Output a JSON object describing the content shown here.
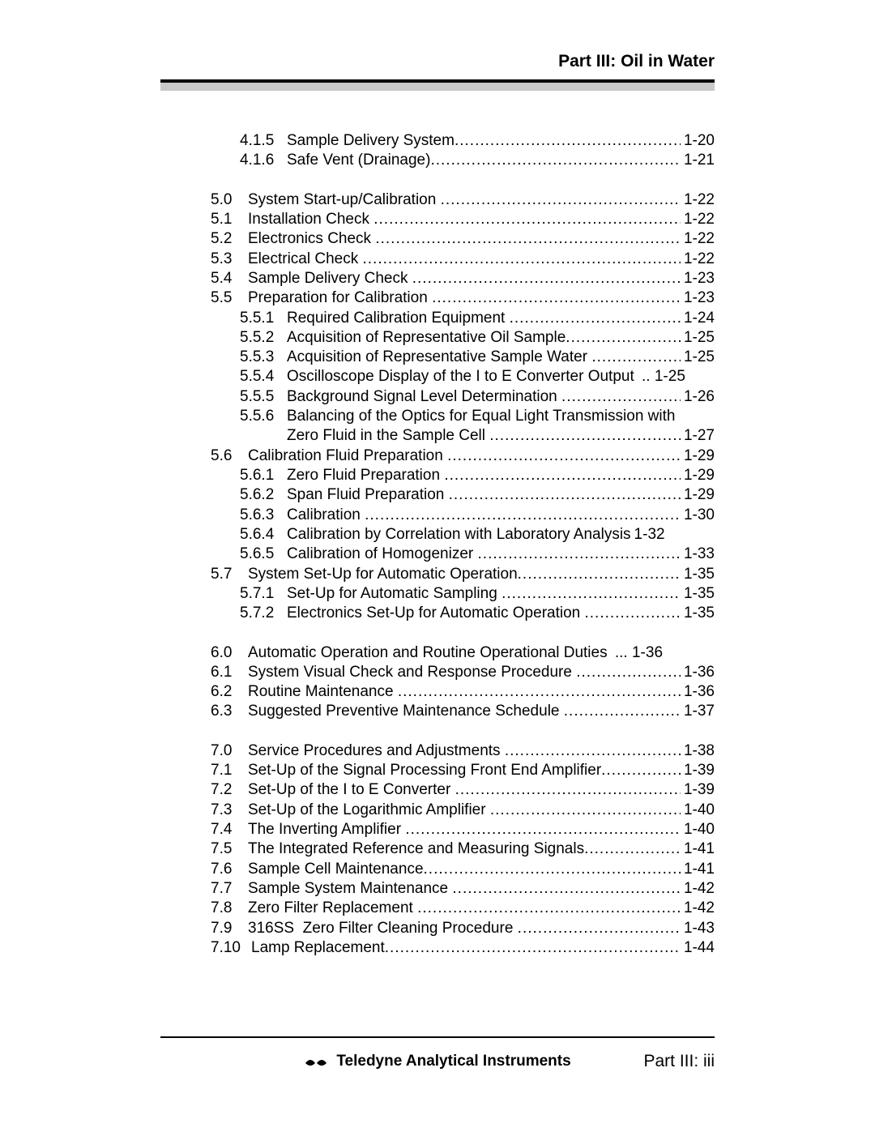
{
  "header": {
    "title": "Part III: Oil in Water"
  },
  "groups": [
    {
      "entries": [
        {
          "level": 2,
          "num": "4.1.5",
          "title": "Sample Delivery System",
          "page": "1-20"
        },
        {
          "level": 2,
          "num": "4.1.6",
          "title": "Safe Vent (Drainage)",
          "page": "1-21"
        }
      ]
    },
    {
      "entries": [
        {
          "level": 1,
          "num": "5.0",
          "title": "System Start-up/Calibration ",
          "page": "1-22"
        },
        {
          "level": 1,
          "num": "5.1",
          "title": "Installation Check ",
          "page": "1-22"
        },
        {
          "level": 1,
          "num": "5.2",
          "title": "Electronics Check ",
          "page": "1-22"
        },
        {
          "level": 1,
          "num": "5.3",
          "title": "Electrical Check ",
          "page": "1-22"
        },
        {
          "level": 1,
          "num": "5.4",
          "title": "Sample Delivery Check ",
          "page": "1-23"
        },
        {
          "level": 1,
          "num": "5.5",
          "title": "Preparation for Calibration ",
          "page": "1-23"
        },
        {
          "level": 2,
          "num": "5.5.1",
          "title": "Required Calibration Equipment ",
          "page": "1-24"
        },
        {
          "level": 2,
          "num": "5.5.2",
          "title": "Acquisition of Representative Oil Sample",
          "page": "1-25"
        },
        {
          "level": 2,
          "num": "5.5.3",
          "title": "Acquisition of Representative Sample Water ",
          "page": "1-25"
        },
        {
          "level": 2,
          "num": "5.5.4",
          "title": "Oscilloscope Display of the I to E Converter Output ",
          "nodots": true,
          "page": ".. 1-25"
        },
        {
          "level": 2,
          "num": "5.5.5",
          "title": "Background Signal Level Determination ",
          "page": "1-26"
        },
        {
          "level": 2,
          "num": "5.5.6",
          "title": "Balancing of the Optics for Equal Light Transmission with",
          "nodots": true,
          "page": ""
        },
        {
          "level": 3,
          "title": "Zero Fluid in the Sample Cell ",
          "page": "1-27"
        },
        {
          "level": 1,
          "num": "5.6",
          "title": "Calibration Fluid Preparation ",
          "page": "1-29"
        },
        {
          "level": 2,
          "num": "5.6.1",
          "title": "Zero Fluid Preparation ",
          "page": "1-29"
        },
        {
          "level": 2,
          "num": "5.6.2",
          "title": "Span Fluid Preparation ",
          "page": "1-29"
        },
        {
          "level": 2,
          "num": "5.6.3",
          "title": "Calibration ",
          "page": "1-30"
        },
        {
          "level": 2,
          "num": "5.6.4",
          "title": "Calibration by Correlation with Laboratory Analysis",
          "nodots": true,
          "page": "1-32"
        },
        {
          "level": 2,
          "num": "5.6.5",
          "title": "Calibration of Homogenizer ",
          "page": "1-33"
        },
        {
          "level": 1,
          "num": "5.7",
          "title": "System Set-Up for Automatic Operation",
          "page": "1-35"
        },
        {
          "level": 2,
          "num": "5.7.1",
          "title": "Set-Up for Automatic Sampling ",
          "page": "1-35"
        },
        {
          "level": 2,
          "num": "5.7.2",
          "title": "Electronics Set-Up for Automatic Operation ",
          "page": "1-35"
        }
      ]
    },
    {
      "entries": [
        {
          "level": 1,
          "num": "6.0",
          "title": "Automatic Operation and Routine Operational Duties ",
          "nodots": true,
          "page": "... 1-36"
        },
        {
          "level": 1,
          "num": "6.1",
          "title": "System Visual Check and Response Procedure ",
          "page": "1-36"
        },
        {
          "level": 1,
          "num": "6.2",
          "title": "Routine Maintenance ",
          "page": "1-36"
        },
        {
          "level": 1,
          "num": "6.3",
          "title": "Suggested Preventive Maintenance Schedule ",
          "page": "1-37"
        }
      ]
    },
    {
      "entries": [
        {
          "level": 1,
          "num": "7.0",
          "title": "Service Procedures and Adjustments ",
          "page": "1-38"
        },
        {
          "level": 1,
          "num": "7.1",
          "title": "Set-Up of the Signal Processing Front End Amplifier",
          "page": "1-39"
        },
        {
          "level": 1,
          "num": "7.2",
          "title": "Set-Up of the I to E Converter ",
          "page": "1-39"
        },
        {
          "level": 1,
          "num": "7.3",
          "title": "Set-Up of the Logarithmic Amplifier ",
          "page": "1-40"
        },
        {
          "level": 1,
          "num": "7.4",
          "title": "The Inverting Amplifier ",
          "page": "1-40"
        },
        {
          "level": 1,
          "num": "7.5",
          "title": "The Integrated Reference and Measuring Signals",
          "page": "1-41"
        },
        {
          "level": 1,
          "num": "7.6",
          "title": "Sample Cell Maintenance",
          "page": "1-41"
        },
        {
          "level": 1,
          "num": "7.7",
          "title": "Sample System Maintenance ",
          "page": "1-42"
        },
        {
          "level": 1,
          "num": "7.8",
          "title": "Zero Filter Replacement ",
          "page": "1-42"
        },
        {
          "level": 1,
          "num": "7.9",
          "title": "316SS  Zero Filter Cleaning Procedure ",
          "page": "1-43"
        },
        {
          "level": 1,
          "num": "7.10",
          "title": "Lamp Replacement",
          "numwide": true,
          "page": "1-44"
        }
      ]
    }
  ],
  "footer": {
    "brand": "Teledyne Analytical Instruments",
    "page": "Part III:  iii"
  }
}
